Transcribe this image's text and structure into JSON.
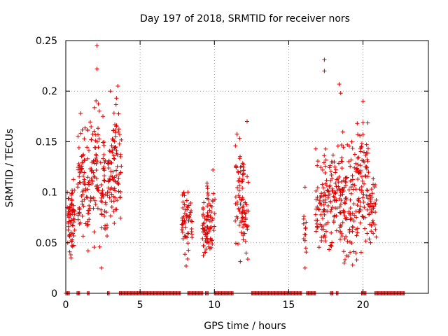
{
  "chart_data": {
    "type": "scatter",
    "title": "Day 197 of 2018, SRMTID for receiver nors",
    "xlabel": "GPS time / hours",
    "ylabel": "SRMTID / TECUs",
    "xlim": [
      0,
      24.4
    ],
    "ylim": [
      0,
      0.25
    ],
    "x_ticks": [
      0,
      5,
      10,
      15,
      20
    ],
    "x_tick_labels": [
      "0",
      "5",
      "10",
      "15",
      "20"
    ],
    "y_ticks": [
      0,
      0.05,
      0.1,
      0.15,
      0.2,
      0.25
    ],
    "y_tick_labels": [
      "0",
      "0.05",
      "0.1",
      "0.15",
      "0.2",
      "0.25"
    ],
    "grid": true,
    "marker": "+",
    "color": "#dd0000",
    "series": [
      {
        "name": "SRMTID",
        "clusters": [
          {
            "x_range": [
              0.1,
              0.6
            ],
            "n": 70,
            "y_min": 0.04,
            "y_max": 0.11
          },
          {
            "x_range": [
              0.8,
              1.6
            ],
            "n": 80,
            "y_min": 0.05,
            "y_max": 0.17
          },
          {
            "x_range": [
              1.6,
              2.3
            ],
            "n": 60,
            "y_min": 0.05,
            "y_max": 0.19
          },
          {
            "x_range": [
              2.3,
              3.1
            ],
            "n": 70,
            "y_min": 0.04,
            "y_max": 0.17
          },
          {
            "x_range": [
              3.1,
              3.75
            ],
            "n": 70,
            "y_min": 0.06,
            "y_max": 0.2
          },
          {
            "x_range": [
              7.8,
              8.5
            ],
            "n": 55,
            "y_min": 0.03,
            "y_max": 0.115
          },
          {
            "x_range": [
              9.2,
              9.55
            ],
            "n": 40,
            "y_min": 0.035,
            "y_max": 0.09
          },
          {
            "x_range": [
              9.5,
              10.05
            ],
            "n": 45,
            "y_min": 0.035,
            "y_max": 0.12
          },
          {
            "x_range": [
              11.4,
              12.0
            ],
            "n": 60,
            "y_min": 0.04,
            "y_max": 0.165
          },
          {
            "x_range": [
              11.9,
              12.3
            ],
            "n": 30,
            "y_min": 0.03,
            "y_max": 0.11
          },
          {
            "x_range": [
              16.0,
              16.2
            ],
            "n": 12,
            "y_min": 0.024,
            "y_max": 0.105
          },
          {
            "x_range": [
              16.8,
              17.6
            ],
            "n": 70,
            "y_min": 0.035,
            "y_max": 0.15
          },
          {
            "x_range": [
              17.6,
              18.6
            ],
            "n": 90,
            "y_min": 0.03,
            "y_max": 0.16
          },
          {
            "x_range": [
              18.6,
              19.6
            ],
            "n": 90,
            "y_min": 0.03,
            "y_max": 0.15
          },
          {
            "x_range": [
              19.6,
              20.4
            ],
            "n": 80,
            "y_min": 0.04,
            "y_max": 0.17
          },
          {
            "x_range": [
              20.4,
              20.9
            ],
            "n": 40,
            "y_min": 0.04,
            "y_max": 0.12
          }
        ],
        "extra_points": [
          {
            "x": 2.1,
            "y": 0.245
          },
          {
            "x": 2.1,
            "y": 0.222
          },
          {
            "x": 1.0,
            "y": 0.178
          },
          {
            "x": 2.5,
            "y": 0.175
          },
          {
            "x": 2.4,
            "y": 0.025
          },
          {
            "x": 17.4,
            "y": 0.231
          },
          {
            "x": 17.4,
            "y": 0.22
          },
          {
            "x": 18.4,
            "y": 0.207
          },
          {
            "x": 18.5,
            "y": 0.198
          },
          {
            "x": 20.0,
            "y": 0.19
          },
          {
            "x": 16.1,
            "y": 0.105
          },
          {
            "x": 16.1,
            "y": 0.025
          },
          {
            "x": 19.3,
            "y": 0.028
          },
          {
            "x": 12.2,
            "y": 0.17
          },
          {
            "x": 9.9,
            "y": 0.122
          },
          {
            "x": 3.5,
            "y": 0.205
          },
          {
            "x": 3.0,
            "y": 0.2
          },
          {
            "x": 1.5,
            "y": 0.042
          },
          {
            "x": 8.1,
            "y": 0.027
          }
        ],
        "zero_runs": [
          [
            0.0,
            0.25
          ],
          [
            0.75,
            0.95
          ],
          [
            1.45,
            1.6
          ],
          [
            2.8,
            2.95
          ],
          [
            3.6,
            3.75
          ],
          [
            3.75,
            7.75
          ],
          [
            8.2,
            9.25
          ],
          [
            9.4,
            9.6
          ],
          [
            10.0,
            11.3
          ],
          [
            12.5,
            15.9
          ],
          [
            16.2,
            16.8
          ],
          [
            17.8,
            18.0
          ],
          [
            18.2,
            18.35
          ],
          [
            19.9,
            20.2
          ],
          [
            20.8,
            22.8
          ]
        ]
      }
    ]
  }
}
